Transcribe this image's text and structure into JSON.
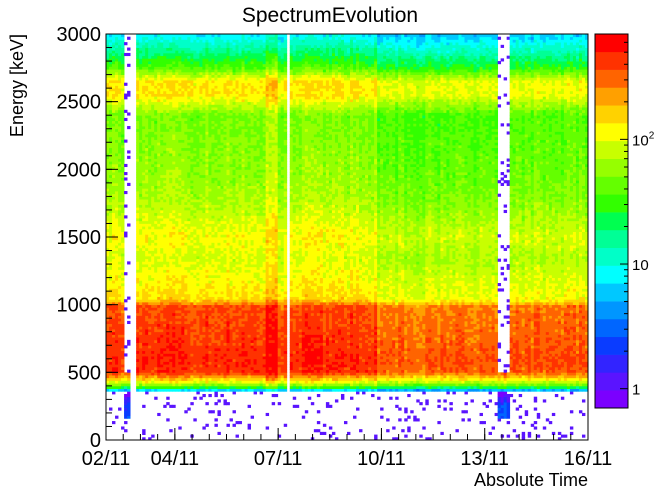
{
  "chart_data": {
    "type": "heatmap",
    "title": "SpectrumEvolution",
    "xlabel": "Absolute Time",
    "ylabel": "Energy [keV]",
    "x_ticks": [
      "02/11",
      "04/11",
      "07/11",
      "10/11",
      "13/11",
      "16/11"
    ],
    "x_tick_days": [
      2,
      4,
      7,
      10,
      13,
      16
    ],
    "xlim_days": [
      2,
      16
    ],
    "y_ticks": [
      0,
      500,
      1000,
      1500,
      2000,
      2500,
      3000
    ],
    "ylim": [
      0,
      3000
    ],
    "z_scale": "log",
    "z_range": [
      0.7,
      700
    ],
    "z_ticks": [
      {
        "value": 1,
        "label": "1"
      },
      {
        "value": 10,
        "label": "10"
      },
      {
        "value": 100,
        "label": "10",
        "sup": "2"
      }
    ],
    "palette": [
      "#7b00ff",
      "#5a14ff",
      "#3224ff",
      "#0a3cff",
      "#0066ff",
      "#0096ff",
      "#00c8ff",
      "#00ffff",
      "#00ffc8",
      "#00ff96",
      "#00ff50",
      "#32ff00",
      "#64ff00",
      "#96ff00",
      "#c8ff00",
      "#ffff00",
      "#ffd200",
      "#ffa000",
      "#ff6400",
      "#ff3200",
      "#ff0000"
    ],
    "spectrum_profile": [
      {
        "energy_kev": 250,
        "counts": 3
      },
      {
        "energy_kev": 350,
        "counts": 1
      },
      {
        "energy_kev": 380,
        "counts": 20
      },
      {
        "energy_kev": 420,
        "counts": 90
      },
      {
        "energy_kev": 500,
        "counts": 450
      },
      {
        "energy_kev": 600,
        "counts": 500
      },
      {
        "energy_kev": 700,
        "counts": 450
      },
      {
        "energy_kev": 800,
        "counts": 420
      },
      {
        "energy_kev": 900,
        "counts": 400
      },
      {
        "energy_kev": 990,
        "counts": 380
      },
      {
        "energy_kev": 1040,
        "counts": 150
      },
      {
        "energy_kev": 1200,
        "counts": 120
      },
      {
        "energy_kev": 1350,
        "counts": 95
      },
      {
        "energy_kev": 1500,
        "counts": 120
      },
      {
        "energy_kev": 1650,
        "counts": 90
      },
      {
        "energy_kev": 1800,
        "counts": 70
      },
      {
        "energy_kev": 2000,
        "counts": 60
      },
      {
        "energy_kev": 2200,
        "counts": 55
      },
      {
        "energy_kev": 2400,
        "counts": 50
      },
      {
        "energy_kev": 2550,
        "counts": 140
      },
      {
        "energy_kev": 2650,
        "counts": 140
      },
      {
        "energy_kev": 2750,
        "counts": 40
      },
      {
        "energy_kev": 2900,
        "counts": 15
      },
      {
        "energy_kev": 3000,
        "counts": 8
      }
    ],
    "gaps_days": [
      [
        2.58,
        2.66
      ],
      [
        2.72,
        2.86
      ],
      [
        7.27,
        7.35
      ],
      [
        13.4,
        13.74
      ]
    ],
    "sparse_days": [
      [
        2.56,
        2.7
      ],
      [
        13.4,
        13.74
      ]
    ],
    "rate_scale_days": [
      {
        "from": 2.0,
        "to": 2.58,
        "scale": 0.9
      },
      {
        "from": 2.86,
        "to": 6.6,
        "scale": 1.0
      },
      {
        "from": 6.6,
        "to": 7.0,
        "scale": 1.3
      },
      {
        "from": 7.0,
        "to": 7.27,
        "scale": 0.9
      },
      {
        "from": 7.35,
        "to": 9.9,
        "scale": 1.0
      },
      {
        "from": 9.9,
        "to": 13.4,
        "scale": 0.7
      },
      {
        "from": 13.74,
        "to": 16.0,
        "scale": 0.75
      }
    ]
  }
}
